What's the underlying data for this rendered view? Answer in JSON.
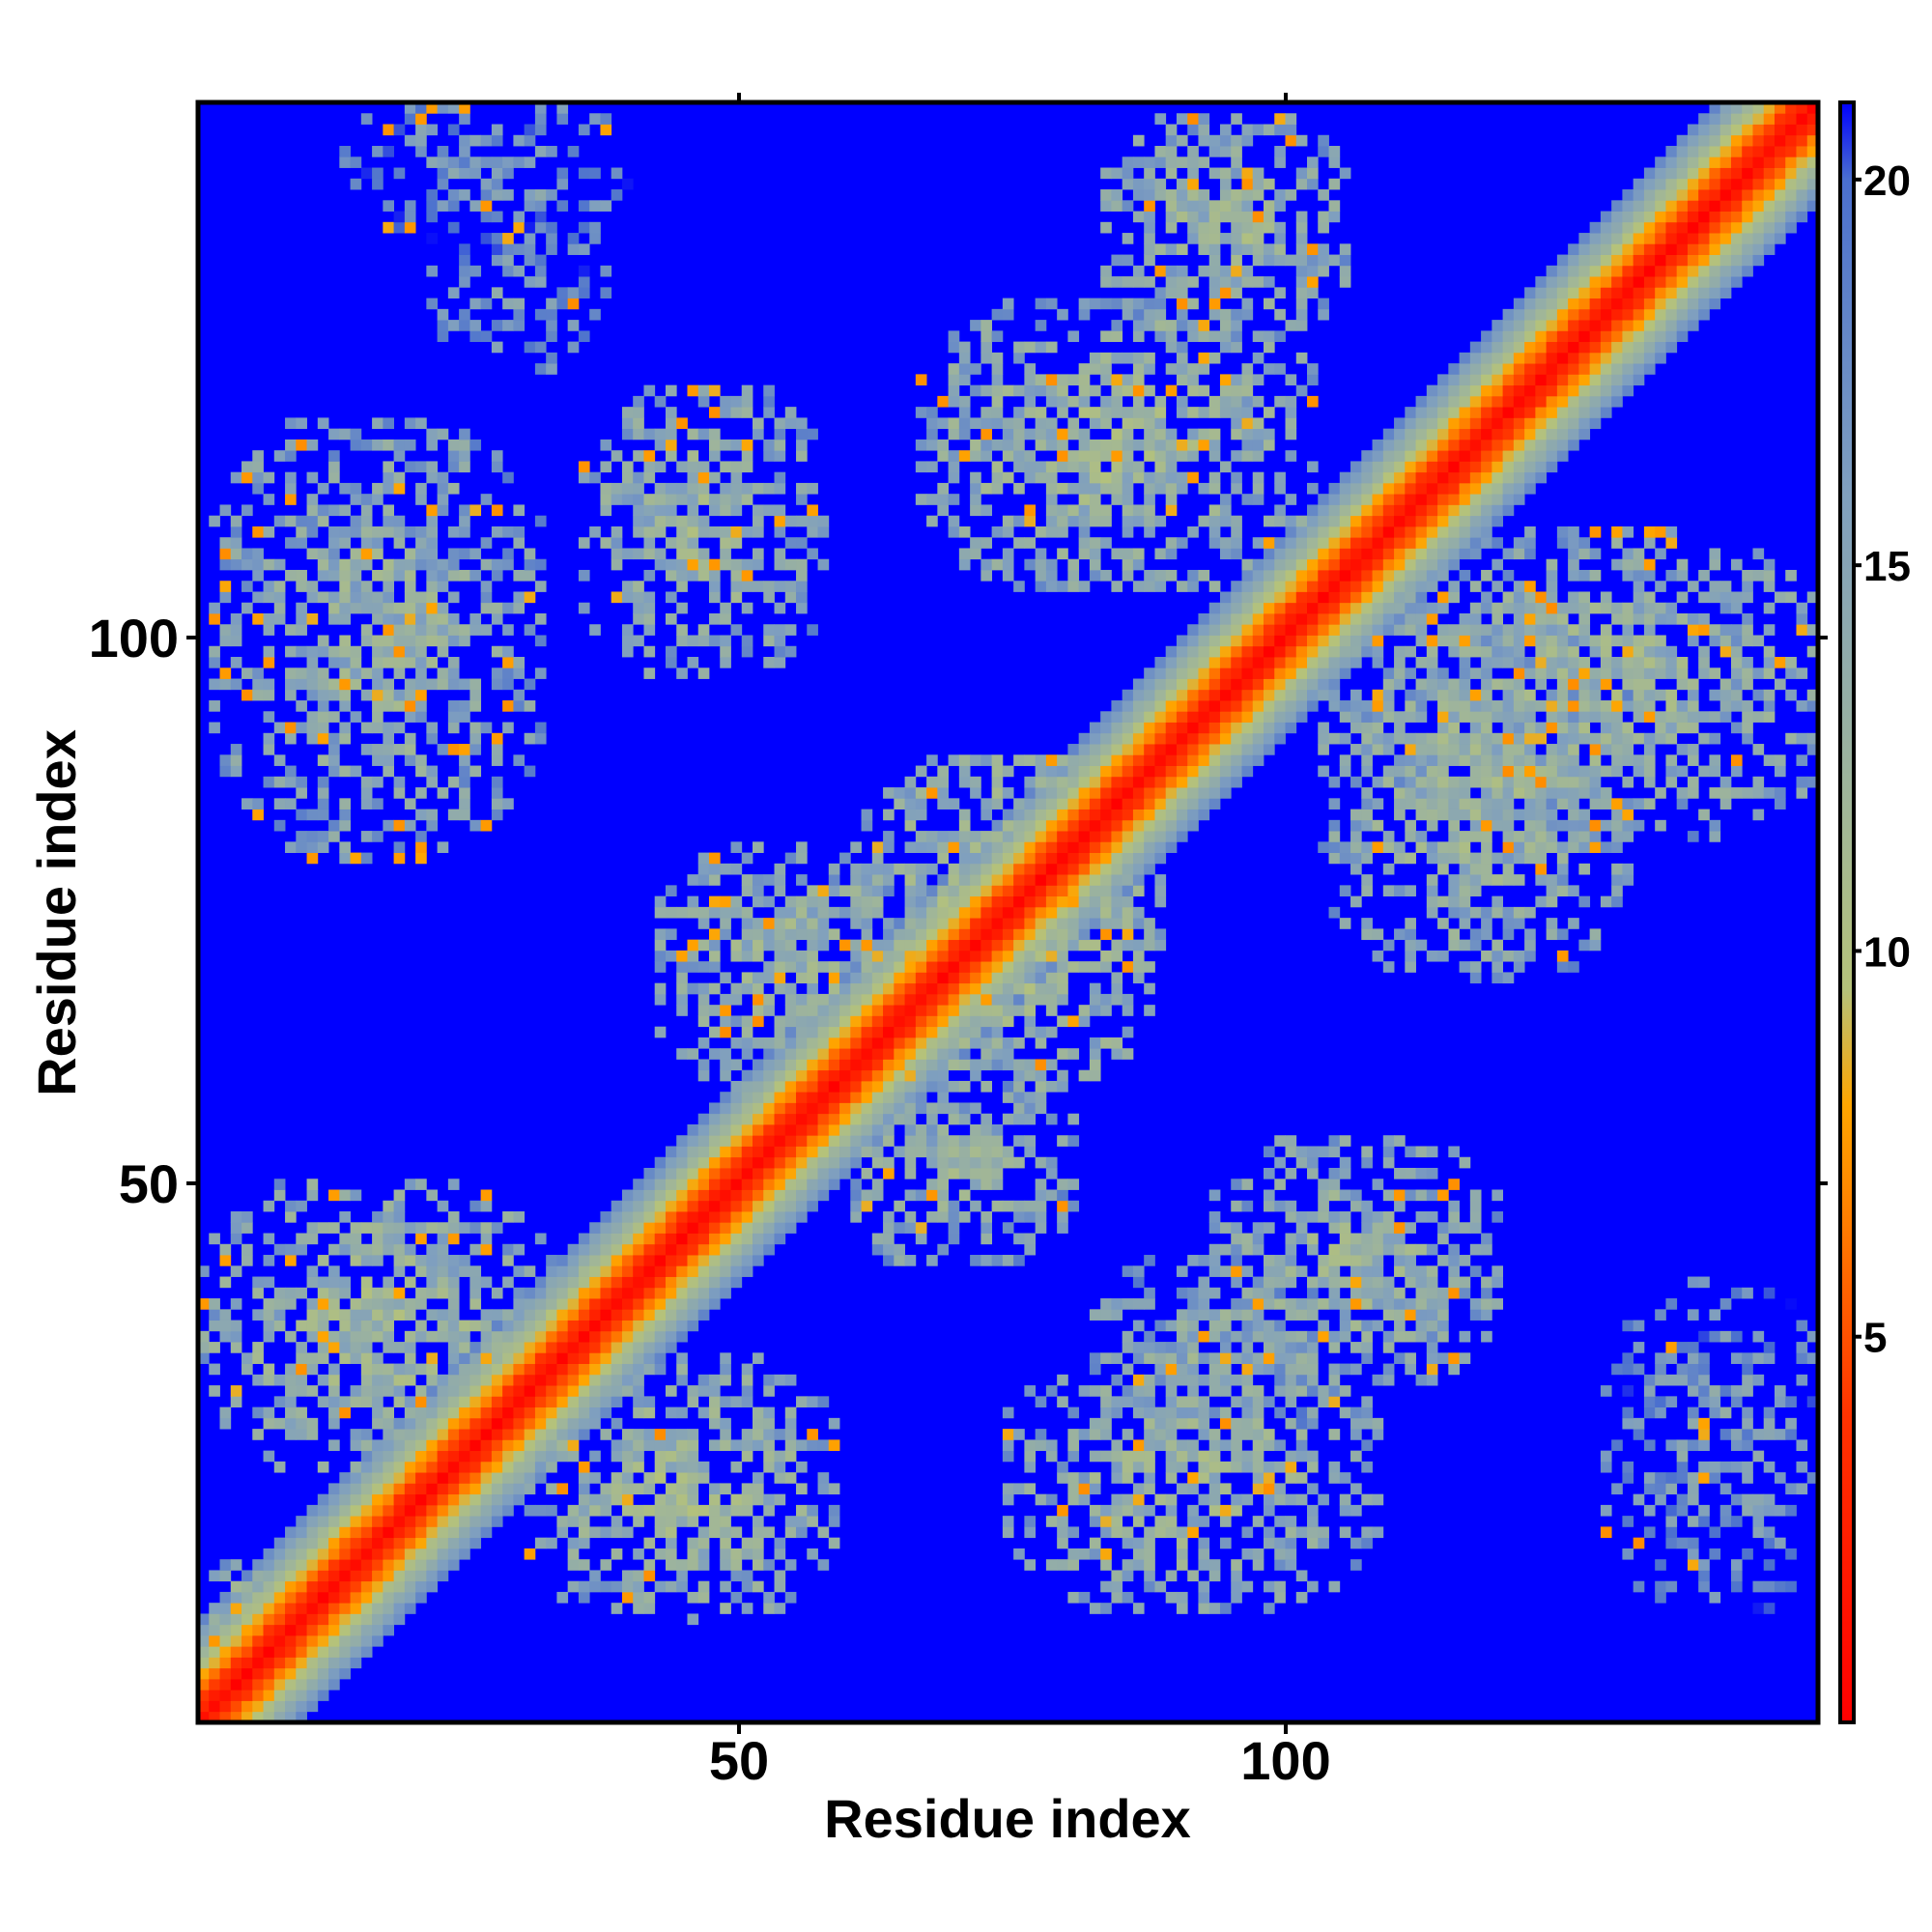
{
  "chart_data": {
    "type": "heatmap",
    "title": "",
    "xlabel": "Residue index",
    "ylabel": "Residue index",
    "n_residues": 149,
    "xlim": [
      1,
      149
    ],
    "ylim": [
      1,
      149
    ],
    "x_ticks": [
      50,
      100
    ],
    "y_ticks": [
      50,
      100
    ],
    "colorbar": {
      "range": [
        0,
        21
      ],
      "ticks": [
        5,
        10,
        15,
        20
      ],
      "stops": [
        {
          "value": 0,
          "color": "#ff0000"
        },
        {
          "value": 4,
          "color": "#ff3300"
        },
        {
          "value": 7,
          "color": "#ff8c00"
        },
        {
          "value": 8,
          "color": "#ffa500"
        },
        {
          "value": 9.5,
          "color": "#b5c27a"
        },
        {
          "value": 12,
          "color": "#9fb59a"
        },
        {
          "value": 16,
          "color": "#7f9fbf"
        },
        {
          "value": 20,
          "color": "#4a6fcf"
        },
        {
          "value": 21,
          "color": "#0000ff"
        }
      ]
    },
    "background_value": 21,
    "contact_blocks": [
      {
        "x_center": 27,
        "y_center": 143,
        "width": 26,
        "height": 14,
        "value": 15.5,
        "density": 0.55
      },
      {
        "x_center": 17,
        "y_center": 100,
        "width": 30,
        "height": 40,
        "value": 13,
        "density": 0.75
      },
      {
        "x_center": 47,
        "y_center": 110,
        "width": 22,
        "height": 26,
        "value": 12.5,
        "density": 0.8
      },
      {
        "x_center": 95,
        "y_center": 138,
        "width": 22,
        "height": 20,
        "value": 12.5,
        "density": 0.8
      },
      {
        "x_center": 85,
        "y_center": 118,
        "width": 36,
        "height": 26,
        "value": 12,
        "density": 0.8
      },
      {
        "x_center": 130,
        "y_center": 96,
        "width": 40,
        "height": 28,
        "value": 12.5,
        "density": 0.8
      },
      {
        "x_center": 118,
        "y_center": 86,
        "width": 28,
        "height": 34,
        "value": 12.5,
        "density": 0.8
      },
      {
        "x_center": 17,
        "y_center": 37,
        "width": 32,
        "height": 26,
        "value": 12,
        "density": 0.8
      },
      {
        "x_center": 45,
        "y_center": 22,
        "width": 28,
        "height": 24,
        "value": 12,
        "density": 0.8
      },
      {
        "x_center": 92,
        "y_center": 23,
        "width": 34,
        "height": 24,
        "value": 12.5,
        "density": 0.75
      },
      {
        "x_center": 107,
        "y_center": 43,
        "width": 26,
        "height": 22,
        "value": 12.5,
        "density": 0.8
      },
      {
        "x_center": 94,
        "y_center": 35,
        "width": 22,
        "height": 16,
        "value": 13.5,
        "density": 0.7
      },
      {
        "x_center": 140,
        "y_center": 26,
        "width": 20,
        "height": 30,
        "value": 15.5,
        "density": 0.5
      },
      {
        "x_center": 75,
        "y_center": 74,
        "width": 28,
        "height": 30,
        "value": 11.5,
        "density": 0.85
      },
      {
        "x_center": 55,
        "y_center": 70,
        "width": 24,
        "height": 22,
        "value": 12.5,
        "density": 0.8
      },
      {
        "x_center": 70,
        "y_center": 52,
        "width": 22,
        "height": 18,
        "value": 13,
        "density": 0.75
      },
      {
        "x_center": 5,
        "y_center": 8,
        "width": 10,
        "height": 14,
        "value": 12,
        "density": 0.7
      },
      {
        "x_center": 30,
        "y_center": 132,
        "width": 16,
        "height": 14,
        "value": 15.5,
        "density": 0.5
      }
    ]
  }
}
